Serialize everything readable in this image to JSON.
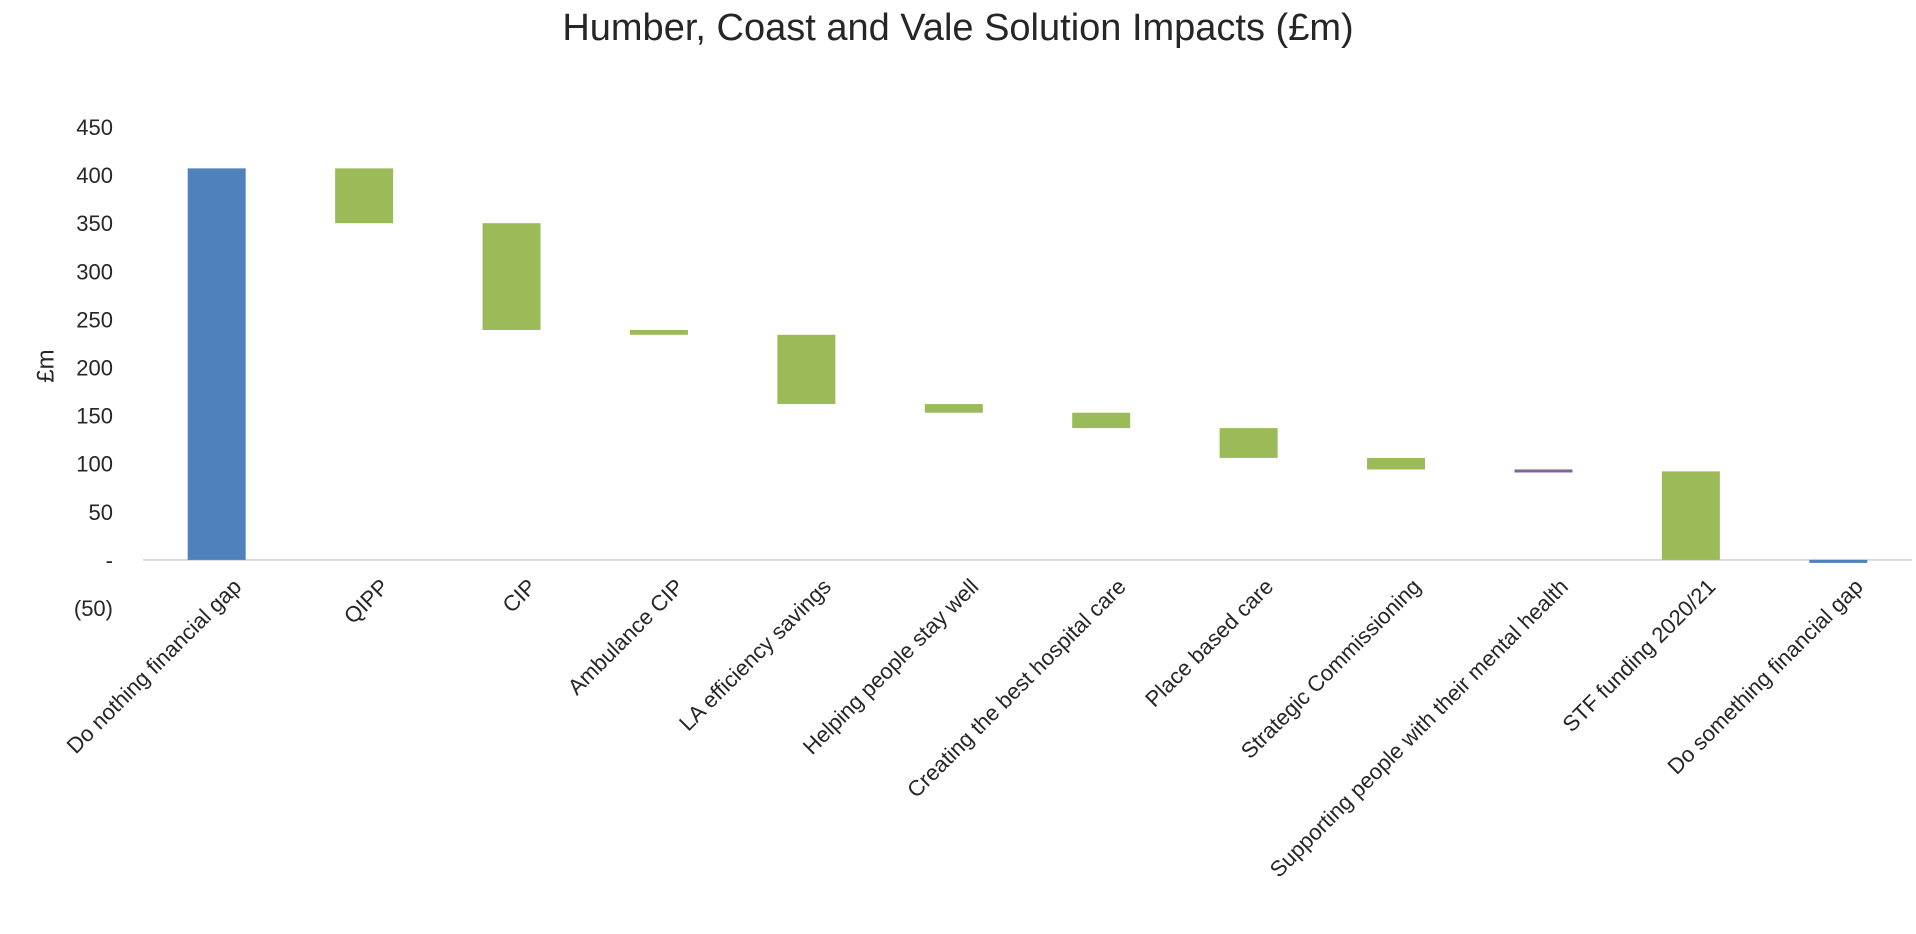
{
  "chart_data": {
    "type": "bar",
    "subtype": "waterfall",
    "title": "Humber, Coast and Vale Solution Impacts (£m)",
    "xlabel": "",
    "ylabel": "£m",
    "ylim": [
      -50,
      450
    ],
    "yticks": [
      {
        "value": 450,
        "label": "450"
      },
      {
        "value": 400,
        "label": "400"
      },
      {
        "value": 350,
        "label": "350"
      },
      {
        "value": 300,
        "label": "300"
      },
      {
        "value": 250,
        "label": "250"
      },
      {
        "value": 200,
        "label": "200"
      },
      {
        "value": 150,
        "label": "150"
      },
      {
        "value": 100,
        "label": "100"
      },
      {
        "value": 50,
        "label": "50"
      },
      {
        "value": 0,
        "label": "-"
      },
      {
        "value": -50,
        "label": "(50)"
      }
    ],
    "grid": false,
    "legend": "none",
    "colors": {
      "total": "#4f81bd",
      "decrease": "#9bbb59",
      "neutral": "#8064a2"
    },
    "categories": [
      "Do nothing financial gap",
      "QIPP",
      "CIP",
      "Ambulance CIP",
      "LA efficiency savings",
      "Helping people stay well",
      "Creating the best hospital care",
      "Place based care",
      "Strategic Commissioning",
      "Supporting people with their mental health",
      "STF funding 2020/21",
      "Do something financial gap"
    ],
    "bars": [
      {
        "category": "Do nothing financial gap",
        "start": 0,
        "end": 407,
        "kind": "total"
      },
      {
        "category": "QIPP",
        "start": 407,
        "end": 350,
        "kind": "decrease"
      },
      {
        "category": "CIP",
        "start": 350,
        "end": 239,
        "kind": "decrease"
      },
      {
        "category": "Ambulance CIP",
        "start": 239,
        "end": 234,
        "kind": "decrease"
      },
      {
        "category": "LA efficiency savings",
        "start": 234,
        "end": 162,
        "kind": "decrease"
      },
      {
        "category": "Helping people stay well",
        "start": 162,
        "end": 153,
        "kind": "decrease"
      },
      {
        "category": "Creating the best hospital care",
        "start": 153,
        "end": 137,
        "kind": "decrease"
      },
      {
        "category": "Place based care",
        "start": 137,
        "end": 106,
        "kind": "decrease"
      },
      {
        "category": "Strategic Commissioning",
        "start": 106,
        "end": 94,
        "kind": "decrease"
      },
      {
        "category": "Supporting people with their mental health",
        "start": 94,
        "end": 92,
        "kind": "neutral"
      },
      {
        "category": "STF funding 2020/21",
        "start": 92,
        "end": 0,
        "kind": "decrease"
      },
      {
        "category": "Do something financial gap",
        "start": 0,
        "end": -2,
        "kind": "total"
      }
    ]
  }
}
